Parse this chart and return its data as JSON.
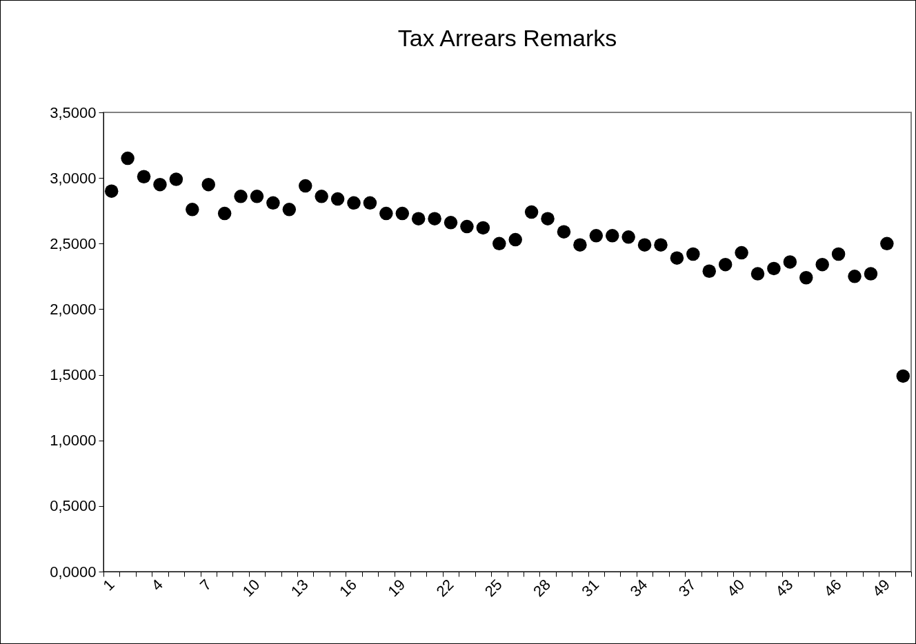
{
  "chart_data": {
    "type": "scatter",
    "title": "Tax Arrears Remarks",
    "categories": [
      "1",
      null,
      null,
      "4",
      null,
      null,
      "7",
      null,
      null,
      "10",
      null,
      null,
      "13",
      null,
      null,
      "16",
      null,
      null,
      "19",
      null,
      null,
      "22",
      null,
      null,
      "25",
      null,
      null,
      "28",
      null,
      null,
      "31",
      null,
      null,
      "34",
      null,
      null,
      "37",
      null,
      null,
      "40",
      null,
      null,
      "43",
      null,
      null,
      "46",
      null,
      null,
      "49",
      null
    ],
    "series": [
      {
        "color": "#000000",
        "values": [
          2.9,
          3.15,
          3.01,
          2.95,
          2.99,
          2.76,
          2.95,
          2.73,
          2.86,
          2.86,
          2.81,
          2.76,
          2.94,
          2.86,
          2.84,
          2.81,
          2.81,
          2.73,
          2.73,
          2.69,
          2.69,
          2.66,
          2.63,
          2.62,
          2.5,
          2.53,
          2.74,
          2.69,
          2.59,
          2.49,
          2.56,
          2.56,
          2.55,
          2.49,
          2.49,
          2.39,
          2.42,
          2.29,
          2.34,
          2.43,
          2.27,
          2.31,
          2.36,
          2.24,
          2.34,
          2.42,
          2.25,
          2.27,
          2.5,
          1.49
        ]
      }
    ],
    "ylim": [
      0,
      3.5
    ],
    "yticks": [
      {
        "value": 0,
        "label": "0,0000"
      },
      {
        "value": 0.5,
        "label": "0,5000"
      },
      {
        "value": 1,
        "label": "1,0000"
      },
      {
        "value": 1.5,
        "label": "1,5000"
      },
      {
        "value": 2,
        "label": "2,0000"
      },
      {
        "value": 2.5,
        "label": "2,5000"
      },
      {
        "value": 3,
        "label": "3,0000"
      },
      {
        "value": 3.5,
        "label": "3,5000"
      }
    ],
    "marker": "circle",
    "grid": false
  }
}
